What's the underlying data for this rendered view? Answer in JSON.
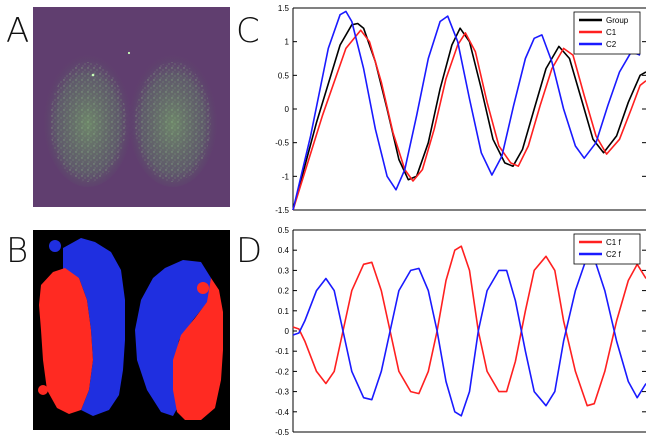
{
  "panels": {
    "a": {
      "letter": "A"
    },
    "b": {
      "letter": "B"
    },
    "c": {
      "letter": "C"
    },
    "d": {
      "letter": "D"
    }
  },
  "colors": {
    "group": "#000000",
    "c1": "#ff2020",
    "c2": "#1a1aff",
    "image_bg": "#5a3b6a",
    "image_glow": "#ff2bd8",
    "image_green": "#7fbf6a",
    "mask_bg": "#000000",
    "mask_red": "#ff2a22",
    "mask_blue": "#1f2fe0"
  },
  "chart_data": [
    {
      "type": "line",
      "panel": "C",
      "title": "",
      "xlabel": "",
      "ylabel": "",
      "ylim": [
        -1.5,
        1.5
      ],
      "yticks": [
        "-1.5",
        "-1",
        "-0.5",
        "0",
        "0.5",
        "1",
        "1.5"
      ],
      "xticks": [],
      "legend": "top-right",
      "series": [
        {
          "name": "Group",
          "color": "#000000",
          "points": [
            [
              0,
              -1.5
            ],
            [
              4,
              -0.2
            ],
            [
              8,
              0.95
            ],
            [
              10,
              1.25
            ],
            [
              11,
              1.27
            ],
            [
              12,
              1.2
            ],
            [
              14,
              0.7
            ],
            [
              16,
              0.0
            ],
            [
              18,
              -0.75
            ],
            [
              19.6,
              -1.05
            ],
            [
              21,
              -1.0
            ],
            [
              23,
              -0.5
            ],
            [
              25,
              0.3
            ],
            [
              27,
              0.95
            ],
            [
              28.4,
              1.2
            ],
            [
              30,
              1.0
            ],
            [
              32,
              0.3
            ],
            [
              34,
              -0.45
            ],
            [
              36,
              -0.8
            ],
            [
              37.4,
              -0.85
            ],
            [
              39,
              -0.6
            ],
            [
              41,
              0.0
            ],
            [
              43,
              0.6
            ],
            [
              45.2,
              0.93
            ],
            [
              47,
              0.75
            ],
            [
              49,
              0.15
            ],
            [
              51,
              -0.45
            ],
            [
              52.8,
              -0.65
            ],
            [
              55,
              -0.4
            ],
            [
              57,
              0.1
            ],
            [
              59,
              0.5
            ],
            [
              60,
              0.55
            ]
          ]
        },
        {
          "name": "C1",
          "color": "#ff2020",
          "points": [
            [
              0,
              -1.5
            ],
            [
              5,
              -0.1
            ],
            [
              9,
              0.9
            ],
            [
              11.5,
              1.17
            ],
            [
              13,
              1.0
            ],
            [
              15,
              0.4
            ],
            [
              17,
              -0.35
            ],
            [
              19,
              -0.9
            ],
            [
              20.4,
              -1.07
            ],
            [
              22,
              -0.9
            ],
            [
              24,
              -0.3
            ],
            [
              26,
              0.45
            ],
            [
              28,
              0.95
            ],
            [
              29.3,
              1.13
            ],
            [
              31,
              0.85
            ],
            [
              33,
              0.1
            ],
            [
              35,
              -0.55
            ],
            [
              37,
              -0.8
            ],
            [
              38.3,
              -0.85
            ],
            [
              40,
              -0.55
            ],
            [
              42,
              0.05
            ],
            [
              44,
              0.6
            ],
            [
              46,
              0.9
            ],
            [
              47.6,
              0.8
            ],
            [
              49.5,
              0.2
            ],
            [
              51.5,
              -0.4
            ],
            [
              53.3,
              -0.67
            ],
            [
              55.5,
              -0.45
            ],
            [
              57.5,
              0.0
            ],
            [
              59,
              0.35
            ],
            [
              60,
              0.42
            ]
          ]
        },
        {
          "name": "C2",
          "color": "#1a1aff",
          "points": [
            [
              0,
              -1.5
            ],
            [
              3,
              -0.4
            ],
            [
              6,
              0.9
            ],
            [
              8,
              1.4
            ],
            [
              9,
              1.45
            ],
            [
              10,
              1.3
            ],
            [
              12,
              0.6
            ],
            [
              14,
              -0.3
            ],
            [
              16,
              -1.0
            ],
            [
              17.5,
              -1.2
            ],
            [
              19,
              -0.9
            ],
            [
              21,
              -0.1
            ],
            [
              23,
              0.75
            ],
            [
              25,
              1.3
            ],
            [
              26.3,
              1.38
            ],
            [
              28,
              1.0
            ],
            [
              30,
              0.15
            ],
            [
              32,
              -0.65
            ],
            [
              33.8,
              -0.98
            ],
            [
              35.5,
              -0.7
            ],
            [
              37.5,
              0.05
            ],
            [
              39.5,
              0.75
            ],
            [
              41,
              1.05
            ],
            [
              42.3,
              1.1
            ],
            [
              44,
              0.7
            ],
            [
              46,
              0.0
            ],
            [
              48,
              -0.55
            ],
            [
              49.5,
              -0.73
            ],
            [
              51.5,
              -0.5
            ],
            [
              53.5,
              0.05
            ],
            [
              55.5,
              0.55
            ],
            [
              57.5,
              0.85
            ],
            [
              59,
              0.8
            ]
          ]
        }
      ]
    },
    {
      "type": "line",
      "panel": "D",
      "title": "",
      "xlabel": "",
      "ylabel": "",
      "ylim": [
        -0.5,
        0.5
      ],
      "yticks": [
        "-0.5",
        "-0.4",
        "-0.3",
        "-0.2",
        "-0.1",
        "0",
        "0.1",
        "0.2",
        "0.3",
        "0.4",
        "0.5"
      ],
      "xticks": [],
      "legend": "top-right",
      "series": [
        {
          "name": "C1 f",
          "color": "#ff2020",
          "points": [
            [
              0,
              0.02
            ],
            [
              1,
              0.01
            ],
            [
              2,
              -0.05
            ],
            [
              4,
              -0.2
            ],
            [
              5.6,
              -0.26
            ],
            [
              7,
              -0.2
            ],
            [
              8.5,
              0.0
            ],
            [
              10,
              0.2
            ],
            [
              12,
              0.33
            ],
            [
              13.4,
              0.34
            ],
            [
              15,
              0.2
            ],
            [
              16.5,
              0.0
            ],
            [
              18,
              -0.2
            ],
            [
              20,
              -0.3
            ],
            [
              21.4,
              -0.31
            ],
            [
              23,
              -0.2
            ],
            [
              24.5,
              0.0
            ],
            [
              26,
              0.25
            ],
            [
              27.5,
              0.4
            ],
            [
              28.6,
              0.42
            ],
            [
              30,
              0.3
            ],
            [
              31.5,
              0.0
            ],
            [
              33,
              -0.2
            ],
            [
              35,
              -0.3
            ],
            [
              36.3,
              -0.3
            ],
            [
              37.8,
              -0.15
            ],
            [
              39.5,
              0.1
            ],
            [
              41,
              0.3
            ],
            [
              43,
              0.37
            ],
            [
              44.5,
              0.3
            ],
            [
              46,
              0.05
            ],
            [
              48,
              -0.2
            ],
            [
              50,
              -0.37
            ],
            [
              51.2,
              -0.36
            ],
            [
              53,
              -0.2
            ],
            [
              55,
              0.05
            ],
            [
              57,
              0.25
            ],
            [
              58.5,
              0.33
            ],
            [
              60,
              0.26
            ]
          ]
        },
        {
          "name": "C2 f",
          "color": "#1a1aff",
          "points": [
            [
              0,
              -0.02
            ],
            [
              1,
              -0.01
            ],
            [
              2,
              0.05
            ],
            [
              4,
              0.2
            ],
            [
              5.6,
              0.26
            ],
            [
              7,
              0.2
            ],
            [
              8.5,
              0.0
            ],
            [
              10,
              -0.2
            ],
            [
              12,
              -0.33
            ],
            [
              13.4,
              -0.34
            ],
            [
              15,
              -0.2
            ],
            [
              16.5,
              0.0
            ],
            [
              18,
              0.2
            ],
            [
              20,
              0.3
            ],
            [
              21.4,
              0.31
            ],
            [
              23,
              0.2
            ],
            [
              24.5,
              0.0
            ],
            [
              26,
              -0.25
            ],
            [
              27.5,
              -0.4
            ],
            [
              28.6,
              -0.42
            ],
            [
              30,
              -0.3
            ],
            [
              31.5,
              0.0
            ],
            [
              33,
              0.2
            ],
            [
              35,
              0.3
            ],
            [
              36.3,
              0.3
            ],
            [
              37.8,
              0.15
            ],
            [
              39.5,
              -0.1
            ],
            [
              41,
              -0.3
            ],
            [
              43,
              -0.37
            ],
            [
              44.5,
              -0.3
            ],
            [
              46,
              -0.05
            ],
            [
              48,
              0.2
            ],
            [
              50,
              0.37
            ],
            [
              51.2,
              0.36
            ],
            [
              53,
              0.2
            ],
            [
              55,
              -0.05
            ],
            [
              57,
              -0.25
            ],
            [
              58.5,
              -0.33
            ],
            [
              60,
              -0.26
            ]
          ]
        }
      ]
    }
  ]
}
